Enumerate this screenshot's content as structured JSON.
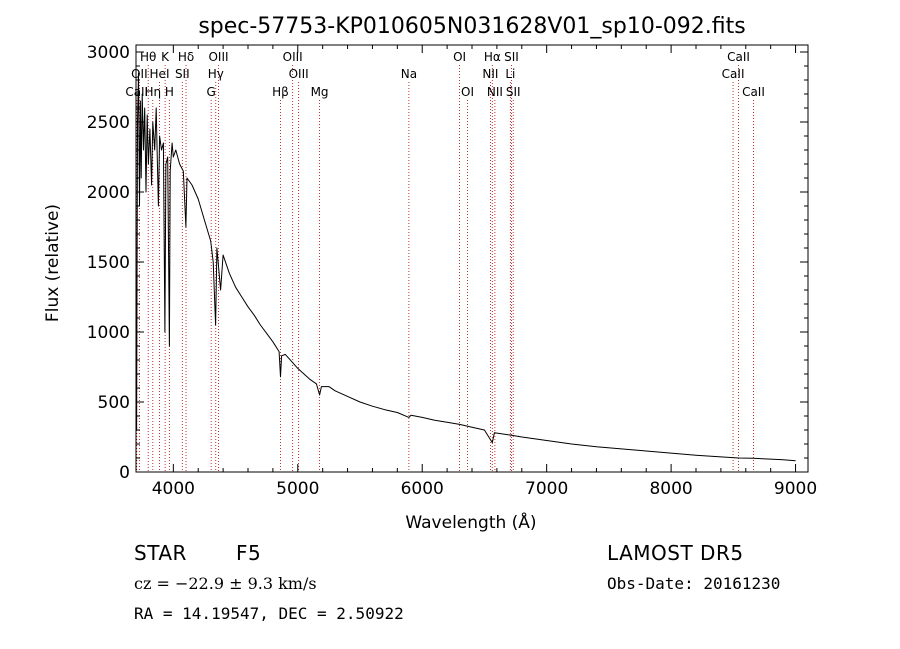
{
  "chart_data": {
    "type": "line",
    "title": "spec-57753-KP010605N031628V01_sp10-092.fits",
    "xlabel": "Wavelength (Å)",
    "ylabel": "Flux (relative)",
    "xlim": [
      3700,
      9100
    ],
    "ylim": [
      0,
      3050
    ],
    "xticks": [
      4000,
      5000,
      6000,
      7000,
      8000,
      9000
    ],
    "yticks": [
      0,
      500,
      1000,
      1500,
      2000,
      2500,
      3000
    ],
    "grid": false,
    "line_color": "#000000",
    "marker_color": "#b00000",
    "series": [
      {
        "points": [
          [
            3700,
            1150
          ],
          [
            3705,
            300
          ],
          [
            3712,
            2500
          ],
          [
            3720,
            2850
          ],
          [
            3728,
            1900
          ],
          [
            3735,
            2650
          ],
          [
            3742,
            2100
          ],
          [
            3750,
            2700
          ],
          [
            3760,
            2300
          ],
          [
            3770,
            2600
          ],
          [
            3780,
            2000
          ],
          [
            3790,
            2550
          ],
          [
            3800,
            2200
          ],
          [
            3812,
            2450
          ],
          [
            3825,
            2050
          ],
          [
            3835,
            2500
          ],
          [
            3850,
            2300
          ],
          [
            3862,
            2600
          ],
          [
            3872,
            2200
          ],
          [
            3880,
            1900
          ],
          [
            3890,
            2400
          ],
          [
            3905,
            2300
          ],
          [
            3920,
            2350
          ],
          [
            3932,
            1000
          ],
          [
            3940,
            2200
          ],
          [
            3955,
            2250
          ],
          [
            3968,
            900
          ],
          [
            3975,
            2150
          ],
          [
            3990,
            2350
          ],
          [
            4000,
            2250
          ],
          [
            4020,
            2300
          ],
          [
            4050,
            2200
          ],
          [
            4080,
            2150
          ],
          [
            4101,
            1750
          ],
          [
            4110,
            2100
          ],
          [
            4150,
            2050
          ],
          [
            4200,
            1950
          ],
          [
            4250,
            1800
          ],
          [
            4300,
            1650
          ],
          [
            4320,
            1500
          ],
          [
            4340,
            1050
          ],
          [
            4350,
            1600
          ],
          [
            4380,
            1300
          ],
          [
            4400,
            1550
          ],
          [
            4450,
            1420
          ],
          [
            4500,
            1320
          ],
          [
            4550,
            1250
          ],
          [
            4600,
            1180
          ],
          [
            4650,
            1120
          ],
          [
            4700,
            1050
          ],
          [
            4750,
            990
          ],
          [
            4800,
            930
          ],
          [
            4850,
            860
          ],
          [
            4861,
            680
          ],
          [
            4870,
            830
          ],
          [
            4900,
            840
          ],
          [
            4950,
            790
          ],
          [
            5000,
            740
          ],
          [
            5050,
            700
          ],
          [
            5100,
            660
          ],
          [
            5150,
            630
          ],
          [
            5175,
            550
          ],
          [
            5190,
            610
          ],
          [
            5250,
            610
          ],
          [
            5300,
            580
          ],
          [
            5400,
            540
          ],
          [
            5500,
            500
          ],
          [
            5600,
            470
          ],
          [
            5700,
            445
          ],
          [
            5800,
            425
          ],
          [
            5893,
            390
          ],
          [
            5910,
            405
          ],
          [
            6000,
            390
          ],
          [
            6100,
            370
          ],
          [
            6200,
            355
          ],
          [
            6300,
            340
          ],
          [
            6400,
            320
          ],
          [
            6500,
            300
          ],
          [
            6563,
            210
          ],
          [
            6580,
            280
          ],
          [
            6700,
            265
          ],
          [
            6800,
            250
          ],
          [
            7000,
            225
          ],
          [
            7200,
            200
          ],
          [
            7400,
            180
          ],
          [
            7600,
            165
          ],
          [
            7800,
            150
          ],
          [
            8000,
            135
          ],
          [
            8200,
            120
          ],
          [
            8400,
            108
          ],
          [
            8542,
            100
          ],
          [
            8662,
            98
          ],
          [
            8800,
            92
          ],
          [
            8900,
            88
          ],
          [
            9000,
            80
          ]
        ]
      }
    ],
    "annotations": [
      {
        "label": "Hθ",
        "wavelength": 3798,
        "row": 0
      },
      {
        "label": "K",
        "wavelength": 3934,
        "row": 0
      },
      {
        "label": "Hδ",
        "wavelength": 4102,
        "row": 0
      },
      {
        "label": "OIII",
        "wavelength": 4363,
        "row": 0
      },
      {
        "label": "OIII",
        "wavelength": 4959,
        "row": 0
      },
      {
        "label": "OI",
        "wavelength": 6300,
        "row": 0
      },
      {
        "label": "Hα",
        "wavelength": 6563,
        "row": 0
      },
      {
        "label": "SII",
        "wavelength": 6717,
        "row": 0
      },
      {
        "label": "CaII",
        "wavelength": 8542,
        "row": 0
      },
      {
        "label": "OII",
        "wavelength": 3727,
        "row": 1
      },
      {
        "label": "HeI",
        "wavelength": 3889,
        "row": 1
      },
      {
        "label": "SII",
        "wavelength": 4072,
        "row": 1
      },
      {
        "label": "Hγ",
        "wavelength": 4341,
        "row": 1
      },
      {
        "label": "OIII",
        "wavelength": 5007,
        "row": 1
      },
      {
        "label": "NII",
        "wavelength": 6548,
        "row": 1
      },
      {
        "label": "Li",
        "wavelength": 6708,
        "row": 1
      },
      {
        "label": "CaII",
        "wavelength": 8498,
        "row": 1
      },
      {
        "label": "CaII",
        "wavelength": 3706,
        "row": 2
      },
      {
        "label": "Hη",
        "wavelength": 3835,
        "row": 2
      },
      {
        "label": "H",
        "wavelength": 3968,
        "row": 2
      },
      {
        "label": "G",
        "wavelength": 4304,
        "row": 2
      },
      {
        "label": "Hβ",
        "wavelength": 4861,
        "row": 2
      },
      {
        "label": "Mg",
        "wavelength": 5175,
        "row": 2
      },
      {
        "label": "Na",
        "wavelength": 5893,
        "row": 1
      },
      {
        "label": "OI",
        "wavelength": 6364,
        "row": 2
      },
      {
        "label": "NII",
        "wavelength": 6584,
        "row": 2
      },
      {
        "label": "SII",
        "wavelength": 6731,
        "row": 2
      },
      {
        "label": "CaII",
        "wavelength": 8662,
        "row": 2
      }
    ]
  },
  "info": {
    "object_class": "STAR",
    "subclass": "F5",
    "survey": "LAMOST DR5",
    "redshift_line": "cz = −22.9 ± 9.3 km/s",
    "obs_date": "Obs-Date: 20161230",
    "coords": "RA =  14.19547, DEC =   2.50922"
  }
}
